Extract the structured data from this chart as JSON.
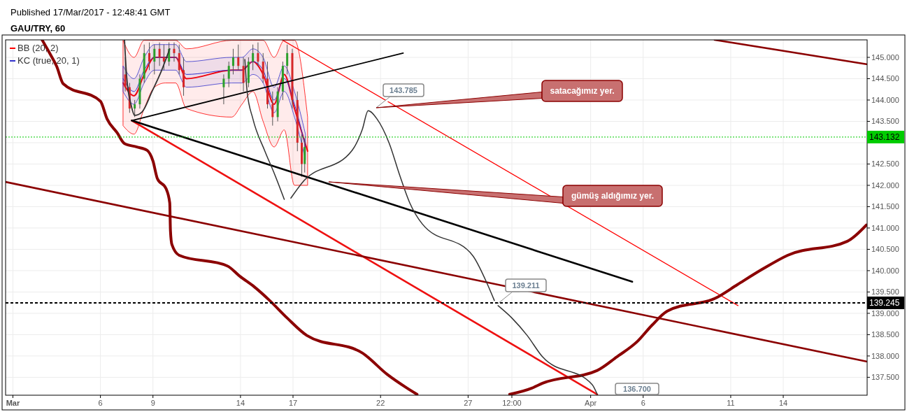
{
  "chart_data": {
    "type": "candlestick",
    "title": "GAU/TRY, 60",
    "subtitle": "Published 17/Mar/2017 - 12:48:41 GMT",
    "x": [
      "2017-03-07T10:00",
      "2017-03-07T16:00",
      "2017-03-07T23:00",
      "2017-03-08T06:00",
      "2017-03-08T12:00",
      "2017-03-08T19:00",
      "2017-03-09T02:00",
      "2017-03-09T09:00",
      "2017-03-09T15:00",
      "2017-03-09T22:00",
      "2017-03-10T05:00",
      "2017-03-10T12:00",
      "2017-03-10T18:00",
      "2017-03-13T01:00",
      "2017-03-13T08:00",
      "2017-03-13T14:00",
      "2017-03-13T21:00",
      "2017-03-14T04:00",
      "2017-03-14T11:00",
      "2017-03-14T17:00",
      "2017-03-15T00:00",
      "2017-03-15T07:00",
      "2017-03-15T13:00",
      "2017-03-15T20:00",
      "2017-03-16T03:00",
      "2017-03-16T10:00",
      "2017-03-16T16:00",
      "2017-03-16T23:00",
      "2017-03-17T06:00",
      "2017-03-17T12:00",
      "2017-03-17T16:00"
    ],
    "ohlc": [
      [
        144.6,
        145.0,
        144.2,
        144.3
      ],
      [
        144.3,
        144.4,
        143.7,
        143.8
      ],
      [
        143.8,
        144.0,
        143.6,
        143.9
      ],
      [
        143.9,
        144.6,
        143.8,
        144.5
      ],
      [
        144.5,
        145.3,
        144.4,
        145.1
      ],
      [
        145.1,
        145.35,
        144.7,
        144.9
      ],
      [
        144.9,
        145.3,
        144.6,
        145.2
      ],
      [
        145.2,
        145.35,
        144.8,
        145.0
      ],
      [
        145.0,
        145.3,
        144.7,
        144.9
      ],
      [
        144.9,
        145.35,
        144.8,
        145.2
      ],
      [
        145.2,
        145.35,
        144.9,
        145.1
      ],
      [
        145.1,
        145.3,
        144.6,
        144.7
      ],
      [
        144.7,
        145.0,
        144.1,
        144.3
      ],
      [
        144.3,
        144.6,
        143.9,
        144.5
      ],
      [
        144.5,
        144.9,
        144.3,
        144.8
      ],
      [
        144.8,
        145.2,
        144.6,
        145.0
      ],
      [
        145.0,
        145.3,
        144.7,
        144.8
      ],
      [
        144.8,
        145.0,
        144.2,
        144.4
      ],
      [
        144.4,
        145.0,
        144.3,
        144.9
      ],
      [
        144.9,
        145.3,
        144.7,
        145.1
      ],
      [
        145.1,
        145.35,
        144.8,
        144.9
      ],
      [
        144.9,
        145.1,
        144.4,
        144.5
      ],
      [
        144.5,
        144.9,
        143.8,
        143.9
      ],
      [
        143.9,
        144.2,
        143.4,
        143.6
      ],
      [
        143.6,
        144.3,
        143.5,
        144.2
      ],
      [
        144.2,
        144.9,
        144.0,
        144.8
      ],
      [
        144.8,
        145.3,
        144.6,
        145.1
      ],
      [
        145.1,
        145.2,
        143.8,
        144.0
      ],
      [
        144.0,
        144.2,
        142.8,
        143.0
      ],
      [
        143.0,
        143.2,
        142.2,
        142.5
      ],
      [
        142.5,
        143.1,
        142.3,
        142.9
      ]
    ],
    "series": [
      {
        "name": "BB (20, 2)",
        "type": "line",
        "color": "#ff0000",
        "x": [
          "2017-03-07T07:00",
          "2017-03-07T22:00",
          "2017-03-08T12:00",
          "2017-03-09T02:00",
          "2017-03-09T17:00",
          "2017-03-10T07:00",
          "2017-03-10T22:00",
          "2017-03-13T12:00",
          "2017-03-14T02:00",
          "2017-03-14T17:00",
          "2017-03-15T07:00",
          "2017-03-15T22:00",
          "2017-03-16T12:00",
          "2017-03-17T02:00",
          "2017-03-17T20:00"
        ],
        "values": [
          144.4,
          144.1,
          144.6,
          145.0,
          145.0,
          145.0,
          144.5,
          144.7,
          144.7,
          144.9,
          144.6,
          143.9,
          144.6,
          143.8,
          142.8
        ],
        "upper": [
          145.4,
          145.0,
          145.4,
          145.4,
          145.4,
          145.4,
          145.2,
          145.4,
          145.4,
          145.4,
          145.4,
          145.0,
          145.4,
          145.4,
          143.6
        ],
        "lower": [
          143.4,
          143.2,
          143.8,
          144.3,
          144.4,
          144.4,
          143.8,
          143.6,
          143.9,
          144.2,
          143.5,
          142.9,
          143.3,
          142.0,
          142.0
        ]
      },
      {
        "name": "KC (true, 20, 1)",
        "type": "line",
        "color": "#3333cc",
        "x": [
          "2017-03-07T07:00",
          "2017-03-07T22:00",
          "2017-03-08T12:00",
          "2017-03-09T02:00",
          "2017-03-09T17:00",
          "2017-03-10T07:00",
          "2017-03-10T22:00",
          "2017-03-13T12:00",
          "2017-03-14T02:00",
          "2017-03-14T17:00",
          "2017-03-15T07:00",
          "2017-03-15T22:00",
          "2017-03-16T12:00",
          "2017-03-17T02:00",
          "2017-03-17T17:00"
        ],
        "values": [
          144.5,
          144.2,
          144.7,
          145.0,
          145.0,
          145.0,
          144.6,
          144.7,
          144.7,
          144.9,
          144.7,
          144.0,
          144.5,
          143.9,
          142.9
        ],
        "upper": [
          144.8,
          144.5,
          145.0,
          145.3,
          145.3,
          145.3,
          144.9,
          145.0,
          145.0,
          145.2,
          145.0,
          144.3,
          144.8,
          144.2,
          143.2
        ],
        "lower": [
          144.2,
          143.9,
          144.4,
          144.7,
          144.7,
          144.7,
          144.3,
          144.4,
          144.4,
          144.6,
          144.4,
          143.7,
          144.2,
          143.6,
          142.6
        ]
      },
      {
        "type": "line",
        "color": "#ff0000",
        "x": [
          "2017-03-16T09:00",
          "2017-04-11T10:00"
        ],
        "values": [
          145.41,
          139.18
        ]
      },
      {
        "type": "line",
        "color": "#ee1111",
        "x": [
          "2017-03-07T19:00",
          "2017-04-03T09:00"
        ],
        "values": [
          143.52,
          137.1
        ]
      },
      {
        "type": "line",
        "color": "#000000",
        "x": [
          "2017-03-07T19:00",
          "2017-04-05T09:00"
        ],
        "values": [
          143.52,
          139.74
        ]
      },
      {
        "type": "line",
        "color": "#000000",
        "x": [
          "2017-03-07T19:00",
          "2017-03-23T07:00"
        ],
        "values": [
          143.52,
          145.1
        ]
      },
      {
        "type": "line",
        "color": "#8b0000",
        "x": [
          "2017-02-28T14:00",
          "2017-04-18T18:00"
        ],
        "values": [
          142.08,
          137.87
        ]
      },
      {
        "type": "line",
        "color": "#8b0000",
        "x": [
          "2017-04-10T02:00",
          "2017-04-18T18:00"
        ],
        "values": [
          145.41,
          144.84
        ]
      },
      {
        "type": "line",
        "color": "#8b0000",
        "x": [
          "2017-03-02T16:00",
          "2017-03-03T02:00",
          "2017-03-03T12:00",
          "2017-03-03T21:00",
          "2017-03-06T00:00",
          "2017-03-06T09:00",
          "2017-03-06T23:00",
          "2017-03-07T09:00",
          "2017-03-08T02:00",
          "2017-03-08T16:00",
          "2017-03-09T00:00",
          "2017-03-09T06:00",
          "2017-03-09T18:00",
          "2017-03-09T23:00",
          "2017-03-10T00:00",
          "2017-03-10T02:00",
          "2017-03-10T12:00",
          "2017-03-13T06:00",
          "2017-03-13T23:00",
          "2017-03-14T19:00",
          "2017-03-15T16:00",
          "2017-03-16T16:00",
          "2017-03-17T19:00",
          "2017-03-20T23:00",
          "2017-03-22T09:00",
          "2017-03-23T12:00",
          "2017-03-24T02:00"
        ],
        "values": [
          145.41,
          145.11,
          144.79,
          144.38,
          143.97,
          143.56,
          143.23,
          142.98,
          142.9,
          142.82,
          142.57,
          142.16,
          141.92,
          141.59,
          140.93,
          140.61,
          140.36,
          140.11,
          139.87,
          139.62,
          139.3,
          138.89,
          138.48,
          138.07,
          137.57,
          137.25,
          137.1
        ]
      },
      {
        "type": "line",
        "color": "#8b0000",
        "x": [
          "2017-03-29T09:00",
          "2017-03-30T16:00",
          "2017-03-31T06:00",
          "2017-04-03T09:00",
          "2017-04-04T12:00",
          "2017-04-05T16:00",
          "2017-04-06T12:00",
          "2017-04-07T09:00",
          "2017-04-10T06:00",
          "2017-04-11T09:00",
          "2017-04-12T19:00",
          "2017-04-14T06:00",
          "2017-04-17T16:00",
          "2017-04-18T18:00"
        ],
        "values": [
          137.1,
          137.25,
          137.36,
          137.66,
          137.98,
          138.34,
          138.72,
          139.05,
          139.38,
          139.67,
          140.03,
          140.36,
          140.69,
          141.07
        ]
      },
      {
        "type": "line",
        "color": "#333333",
        "x": [
          "2017-03-16T21:00",
          "2017-03-17T12:00",
          "2017-03-20T09:00",
          "2017-03-20T23:00",
          "2017-03-21T07:00",
          "2017-03-21T19:00",
          "2017-03-22T12:00",
          "2017-03-23T02:00",
          "2017-03-23T16:00",
          "2017-03-24T09:00",
          "2017-03-27T06:00",
          "2017-03-28T02:00",
          "2017-03-28T12:00"
        ],
        "values": [
          141.7,
          142.05,
          142.82,
          143.31,
          143.75,
          143.56,
          142.98,
          142.25,
          141.59,
          141.1,
          140.36,
          139.7,
          139.3
        ]
      },
      {
        "type": "line",
        "color": "#333333",
        "x": [
          "2017-03-28T17:00",
          "2017-03-29T12:00",
          "2017-03-30T09:00",
          "2017-03-31T06:00",
          "2017-04-03T02:00",
          "2017-04-03T09:00"
        ],
        "values": [
          139.18,
          138.89,
          138.48,
          137.98,
          137.33,
          137.1
        ]
      },
      {
        "type": "line",
        "color": "#333333",
        "x": [
          "2017-03-14T06:00",
          "2017-03-14T09:00",
          "2017-03-14T17:00",
          "2017-03-15T09:00",
          "2017-03-15T23:00",
          "2017-03-16T12:00"
        ],
        "values": [
          144.95,
          144.21,
          143.56,
          142.82,
          142.25,
          141.67
        ]
      },
      {
        "type": "line",
        "color": "#333333",
        "x": [
          "2017-03-07T09:00",
          "2017-03-07T12:00",
          "2017-03-07T18:00",
          "2017-03-07T23:00",
          "2017-03-08T09:00",
          "2017-03-08T23:00",
          "2017-03-09T12:00",
          "2017-03-09T23:00"
        ],
        "values": [
          145.41,
          144.54,
          143.89,
          143.64,
          143.72,
          144.21,
          144.7,
          145.2
        ]
      }
    ],
    "xlim": [
      "2017-02-28T14:00",
      "2017-04-18T19:00"
    ],
    "xticks": [
      {
        "value": "2017-03-01",
        "label": "Mar"
      },
      {
        "value": "2017-03-06",
        "label": "6"
      },
      {
        "value": "2017-03-09",
        "label": "9"
      },
      {
        "value": "2017-03-14",
        "label": "14"
      },
      {
        "value": "2017-03-17",
        "label": "17"
      },
      {
        "value": "2017-03-22",
        "label": "22"
      },
      {
        "value": "2017-03-27",
        "label": "27"
      },
      {
        "value": "2017-03-29T12:00",
        "label": "12:00"
      },
      {
        "value": "2017-04-03",
        "label": "Apr"
      },
      {
        "value": "2017-04-06",
        "label": "6"
      },
      {
        "value": "2017-04-11",
        "label": "11"
      },
      {
        "value": "2017-04-14",
        "label": "14"
      }
    ],
    "ylim": [
      137.08,
      145.41
    ],
    "yticks": [
      {
        "value": 137.5,
        "label": "137.500"
      },
      {
        "value": 138,
        "label": "138.000"
      },
      {
        "value": 138.5,
        "label": "138.500"
      },
      {
        "value": 139,
        "label": "139.000"
      },
      {
        "value": 139.5,
        "label": "139.500"
      },
      {
        "value": 140,
        "label": "140.000"
      },
      {
        "value": 140.5,
        "label": "140.500"
      },
      {
        "value": 141,
        "label": "141.000"
      },
      {
        "value": 141.5,
        "label": "141.500"
      },
      {
        "value": 142,
        "label": "142.000"
      },
      {
        "value": 142.5,
        "label": "142.500"
      },
      {
        "value": 143,
        "label": null
      },
      {
        "value": 143.5,
        "label": "143.500"
      },
      {
        "value": 144,
        "label": "144.000"
      },
      {
        "value": 144.5,
        "label": "144.500"
      },
      {
        "value": 145,
        "label": "145.000"
      }
    ],
    "ref_lines": [
      {
        "axis": "y",
        "value": 143.132,
        "label": "143.132",
        "color": "#00cc00",
        "line_style": "dotted"
      },
      {
        "axis": "y",
        "value": 139.245,
        "label": "139.245",
        "color": "#000000",
        "line_style": "dashed"
      }
    ],
    "annotations": [
      "143.785",
      "139.211",
      "satacağımız yer.",
      "gümüş aldığımız yer.",
      "136.700"
    ],
    "grid": true,
    "legend": "top left"
  }
}
